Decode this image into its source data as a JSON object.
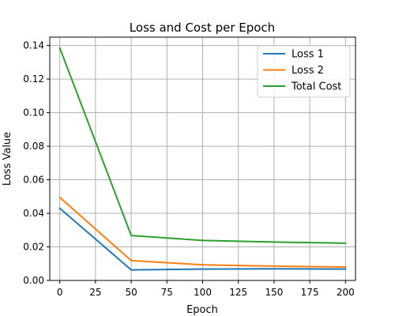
{
  "chart_data": {
    "type": "line",
    "title": "Loss and Cost per Epoch",
    "xlabel": "Epoch",
    "ylabel": "Loss Value",
    "xlim": [
      -7,
      207
    ],
    "ylim": [
      0,
      0.145
    ],
    "xticks": [
      0,
      25,
      50,
      75,
      100,
      125,
      150,
      175,
      200
    ],
    "xtick_labels": [
      "0",
      "25",
      "50",
      "75",
      "100",
      "125",
      "150",
      "175",
      "200"
    ],
    "yticks": [
      0.0,
      0.02,
      0.04,
      0.06,
      0.08,
      0.1,
      0.12,
      0.14
    ],
    "ytick_labels": [
      "0.00",
      "0.02",
      "0.04",
      "0.06",
      "0.08",
      "0.10",
      "0.12",
      "0.14"
    ],
    "grid": true,
    "legend_position": "top-right",
    "x": [
      0,
      50,
      100,
      150,
      200
    ],
    "series": [
      {
        "name": "Loss 1",
        "color": "#1f77b4",
        "values": [
          0.043,
          0.0063,
          0.0068,
          0.0069,
          0.0068
        ]
      },
      {
        "name": "Loss 2",
        "color": "#ff7f0e",
        "values": [
          0.0495,
          0.0118,
          0.0093,
          0.0085,
          0.008
        ]
      },
      {
        "name": "Total Cost",
        "color": "#2ca02c",
        "values": [
          0.1385,
          0.0268,
          0.0238,
          0.0229,
          0.0222
        ]
      }
    ]
  }
}
